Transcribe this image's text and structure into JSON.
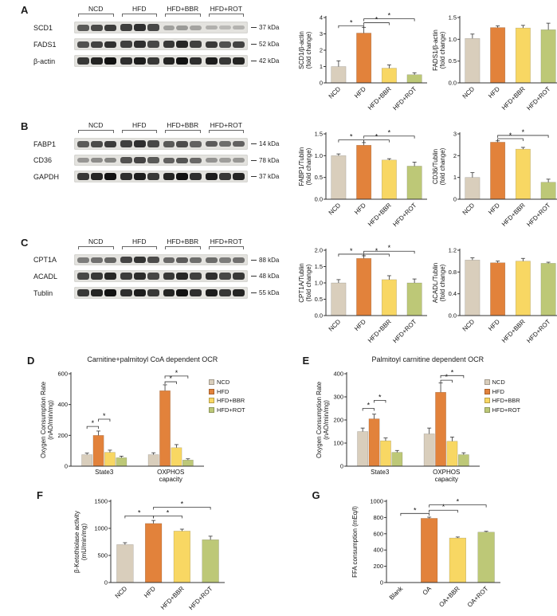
{
  "figure": {
    "groups": [
      "NCD",
      "HFD",
      "HFD+BBR",
      "HFD+ROT"
    ],
    "group_colors": [
      "#d9cebc",
      "#e2823b",
      "#f8d763",
      "#bdc877"
    ]
  },
  "panels": {
    "A": {
      "letter": "A",
      "blot": {
        "rows": [
          {
            "label": "SCD1",
            "marker": "37 kDa",
            "intensities": [
              0.8,
              0.9,
              0.35,
              0.25
            ]
          },
          {
            "label": "FADS1",
            "marker": "52 kDa",
            "intensities": [
              0.85,
              0.9,
              0.9,
              0.85
            ]
          },
          {
            "label": "β-actin",
            "marker": "42 kDa",
            "intensities": [
              1,
              1,
              1,
              1
            ]
          }
        ]
      }
    },
    "B": {
      "letter": "B",
      "blot": {
        "rows": [
          {
            "label": "FABP1",
            "marker": "14 kDa",
            "intensities": [
              0.8,
              0.9,
              0.72,
              0.68
            ]
          },
          {
            "label": "CD36",
            "marker": "78 kDa",
            "intensities": [
              0.45,
              0.8,
              0.68,
              0.4
            ]
          },
          {
            "label": "GAPDH",
            "marker": "37 kDa",
            "intensities": [
              1,
              1,
              1,
              1
            ]
          }
        ]
      }
    },
    "C": {
      "letter": "C",
      "blot": {
        "rows": [
          {
            "label": "CPT1A",
            "marker": "88 kDa",
            "intensities": [
              0.6,
              0.88,
              0.65,
              0.6
            ]
          },
          {
            "label": "ACADL",
            "marker": "48 kDa",
            "intensities": [
              0.9,
              0.92,
              0.9,
              0.9
            ]
          },
          {
            "label": "Tublin",
            "marker": "55 kDa",
            "intensities": [
              1,
              1,
              1,
              1
            ]
          }
        ]
      }
    },
    "D": {
      "letter": "D",
      "title": "Carnitine+palmitoyl CoA dependent OCR"
    },
    "E": {
      "letter": "E",
      "title": "Palmitoyl carnitine dependent OCR"
    },
    "F": {
      "letter": "F"
    },
    "G": {
      "letter": "G"
    }
  },
  "chart_data": [
    {
      "id": "A1",
      "type": "bar",
      "categories": [
        "NCD",
        "HFD",
        "HFD+BBR",
        "HFD+ROT"
      ],
      "values": [
        1.0,
        3.05,
        0.9,
        0.5
      ],
      "errors": [
        0.35,
        0.35,
        0.2,
        0.12
      ],
      "ylabel": "SCD1/β-actin\n(fold change)",
      "ylim": [
        0,
        4
      ],
      "yticks": [
        "0",
        "1",
        "2",
        "3",
        "4"
      ],
      "sig": [
        {
          "x1": 0,
          "x2": 1,
          "y": 3.5,
          "label": "*"
        },
        {
          "x1": 1,
          "x2": 2,
          "y": 3.68,
          "label": "*"
        },
        {
          "x1": 1,
          "x2": 3,
          "y": 3.92,
          "label": "*"
        }
      ]
    },
    {
      "id": "A2",
      "type": "bar",
      "categories": [
        "NCD",
        "HFD",
        "HFD+BBR",
        "HFD+ROT"
      ],
      "values": [
        1.02,
        1.27,
        1.26,
        1.22
      ],
      "errors": [
        0.1,
        0.04,
        0.06,
        0.15
      ],
      "ylabel": "FADS1/β-actin\n(fold change)",
      "ylim": [
        0,
        1.5
      ],
      "yticks": [
        "0.0",
        "0.5",
        "1.0",
        "1.5"
      ],
      "sig": []
    },
    {
      "id": "B1",
      "type": "bar",
      "categories": [
        "NCD",
        "HFD",
        "HFD+BBR",
        "HFD+ROT"
      ],
      "values": [
        1.0,
        1.24,
        0.9,
        0.76
      ],
      "errors": [
        0.04,
        0.06,
        0.03,
        0.09
      ],
      "ylabel": "FABP1/Tublin\n(fold change)",
      "ylim": [
        0,
        1.5
      ],
      "yticks": [
        "0.0",
        "0.5",
        "1.0",
        "1.5"
      ],
      "sig": [
        {
          "x1": 0,
          "x2": 1,
          "y": 1.36,
          "label": "*"
        },
        {
          "x1": 1,
          "x2": 2,
          "y": 1.36,
          "label": "*"
        },
        {
          "x1": 1,
          "x2": 3,
          "y": 1.45,
          "label": "*"
        }
      ]
    },
    {
      "id": "B2",
      "type": "bar",
      "categories": [
        "NCD",
        "HFD",
        "HFD+BBR",
        "HFD+ROT"
      ],
      "values": [
        1.0,
        2.62,
        2.3,
        0.78
      ],
      "errors": [
        0.22,
        0.06,
        0.08,
        0.14
      ],
      "ylabel": "CD36/Tublin\n(fold change)",
      "ylim": [
        0,
        3
      ],
      "yticks": [
        "0",
        "1",
        "2",
        "3"
      ],
      "sig": [
        {
          "x1": 1,
          "x2": 2,
          "y": 2.78,
          "label": "*"
        },
        {
          "x1": 1,
          "x2": 3,
          "y": 2.93,
          "label": "*"
        }
      ]
    },
    {
      "id": "C1",
      "type": "bar",
      "categories": [
        "NCD",
        "HFD",
        "HFD+BBR",
        "HFD+ROT"
      ],
      "values": [
        1.0,
        1.75,
        1.1,
        1.0
      ],
      "errors": [
        0.1,
        0.08,
        0.12,
        0.12
      ],
      "ylabel": "CPT1A/Tublin\n(fold change)",
      "ylim": [
        0,
        2.0
      ],
      "yticks": [
        "0.0",
        "0.5",
        "1.0",
        "1.5",
        "2.0"
      ],
      "sig": [
        {
          "x1": 0,
          "x2": 1,
          "y": 1.88,
          "label": "*"
        },
        {
          "x1": 1,
          "x2": 2,
          "y": 1.88,
          "label": "*"
        },
        {
          "x1": 1,
          "x2": 3,
          "y": 1.97,
          "label": "*"
        }
      ]
    },
    {
      "id": "C2",
      "type": "bar",
      "categories": [
        "NCD",
        "HFD",
        "HFD+BBR",
        "HFD+ROT"
      ],
      "values": [
        1.02,
        0.97,
        1.0,
        0.96
      ],
      "errors": [
        0.04,
        0.03,
        0.05,
        0.02
      ],
      "ylabel": "ACADL/Tublin\n(fold change)",
      "ylim": [
        0,
        1.2
      ],
      "yticks": [
        "0.0",
        "0.4",
        "0.8",
        "1.2"
      ],
      "sig": []
    },
    {
      "id": "D",
      "type": "grouped-bar",
      "title": "Carnitine+palmitoyl CoA dependent OCR",
      "categories": [
        "State3",
        "OXPHOS\ncapacity"
      ],
      "series": [
        {
          "name": "NCD",
          "values": [
            75,
            75
          ],
          "errors": [
            10,
            12
          ]
        },
        {
          "name": "HFD",
          "values": [
            200,
            490
          ],
          "errors": [
            28,
            38
          ]
        },
        {
          "name": "HFD+BBR",
          "values": [
            90,
            120
          ],
          "errors": [
            14,
            20
          ]
        },
        {
          "name": "HFD+ROT",
          "values": [
            55,
            40
          ],
          "errors": [
            10,
            8
          ]
        }
      ],
      "ylabel": "Oxygen Consumption Rate\n(nAO/min/mg)",
      "ylim": [
        0,
        600
      ],
      "yticks": [
        "0",
        "200",
        "400",
        "600"
      ],
      "legend_position": "right",
      "sig": [
        {
          "x1": 0,
          "x2": 1,
          "y": 258,
          "label": "*"
        },
        {
          "x1": 1,
          "x2": 2,
          "y": 305,
          "label": "*"
        },
        {
          "x1": 5,
          "x2": 6,
          "y": 548,
          "label": "*"
        },
        {
          "x1": 5,
          "x2": 7,
          "y": 585,
          "label": "*"
        }
      ]
    },
    {
      "id": "E",
      "type": "grouped-bar",
      "title": "Palmitoyl carnitine dependent OCR",
      "categories": [
        "State3",
        "OXPHOS\ncapacity"
      ],
      "series": [
        {
          "name": "NCD",
          "values": [
            150,
            140
          ],
          "errors": [
            15,
            25
          ]
        },
        {
          "name": "HFD",
          "values": [
            205,
            320
          ],
          "errors": [
            20,
            40
          ]
        },
        {
          "name": "HFD+BBR",
          "values": [
            110,
            108
          ],
          "errors": [
            12,
            18
          ]
        },
        {
          "name": "HFD+ROT",
          "values": [
            60,
            50
          ],
          "errors": [
            8,
            8
          ]
        }
      ],
      "ylabel": "Oxygen Consumption Rate\n(nAO/min/mg)",
      "ylim": [
        0,
        400
      ],
      "yticks": [
        "0",
        "100",
        "200",
        "300",
        "400"
      ],
      "legend_position": "right",
      "sig": [
        {
          "x1": 0,
          "x2": 1,
          "y": 250,
          "label": "*"
        },
        {
          "x1": 1,
          "x2": 2,
          "y": 285,
          "label": "*"
        },
        {
          "x1": 5,
          "x2": 6,
          "y": 372,
          "label": "*"
        },
        {
          "x1": 5,
          "x2": 7,
          "y": 392,
          "label": "*"
        }
      ]
    },
    {
      "id": "F",
      "type": "bar",
      "categories": [
        "NCD",
        "HFD",
        "HFD+BBR",
        "HFD+ROT"
      ],
      "values": [
        700,
        1090,
        950,
        790
      ],
      "errors": [
        35,
        55,
        35,
        65
      ],
      "ylabel": "β-Ketothiolase activity\n(mU/min/mg)",
      "ylim": [
        0,
        1500
      ],
      "yticks": [
        "0",
        "500",
        "1000",
        "1500"
      ],
      "sig": [
        {
          "x1": 0,
          "x2": 1,
          "y": 1230,
          "label": "*"
        },
        {
          "x1": 1,
          "x2": 2,
          "y": 1230,
          "label": "*"
        },
        {
          "x1": 1,
          "x2": 3,
          "y": 1390,
          "label": "*"
        }
      ]
    },
    {
      "id": "G",
      "type": "bar",
      "categories": [
        "Blank",
        "OA",
        "OA+BBR",
        "OA+ROT"
      ],
      "values": [
        0,
        790,
        548,
        620
      ],
      "errors": [
        0,
        14,
        12,
        10
      ],
      "ylabel": "FFA consumption (mEq/l)",
      "ylim": [
        0,
        1000
      ],
      "yticks": [
        "0",
        "200",
        "400",
        "600",
        "800",
        "1000"
      ],
      "sig": [
        {
          "x1": 0,
          "x2": 1,
          "y": 850,
          "label": "*"
        },
        {
          "x1": 1,
          "x2": 2,
          "y": 890,
          "label": "*"
        },
        {
          "x1": 1,
          "x2": 3,
          "y": 955,
          "label": "*"
        }
      ]
    }
  ]
}
